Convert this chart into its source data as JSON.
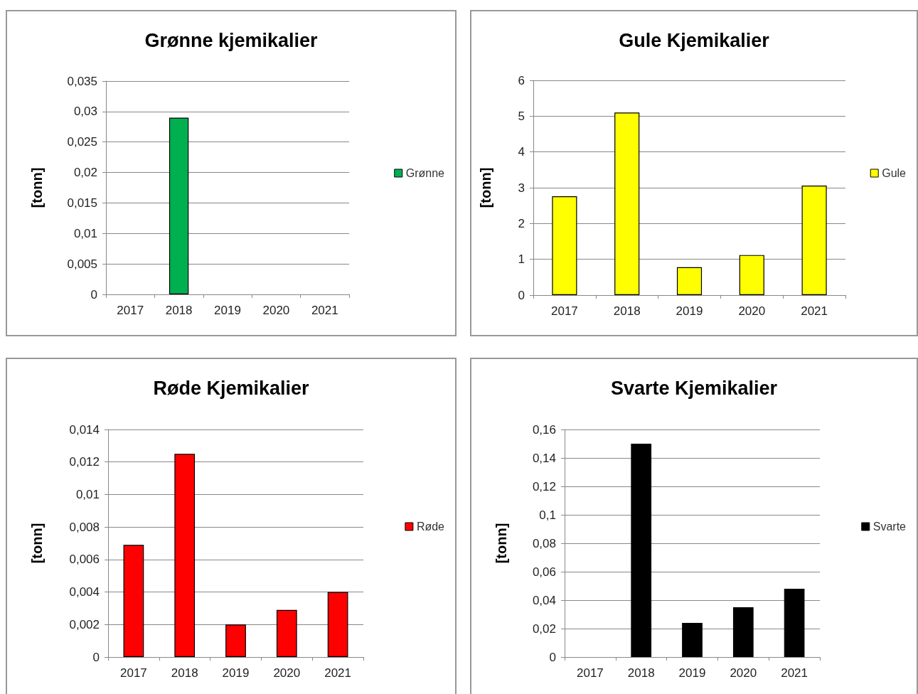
{
  "chart_data": [
    {
      "type": "bar",
      "title": "Grønne kjemikalier",
      "ylabel": "[tonn]",
      "categories": [
        "2017",
        "2018",
        "2019",
        "2020",
        "2021"
      ],
      "series": [
        {
          "name": "Grønne",
          "color": "#00b050",
          "values": [
            0,
            0.029,
            0,
            0,
            0
          ]
        }
      ],
      "ylim": [
        0,
        0.035
      ],
      "yticks": [
        0,
        {
          "value": 0.005,
          "label": "0,005"
        },
        {
          "value": 0.01,
          "label": "0,01"
        },
        {
          "value": 0.015,
          "label": "0,015"
        },
        {
          "value": 0.02,
          "label": "0,02"
        },
        {
          "value": 0.025,
          "label": "0,025"
        },
        {
          "value": 0.03,
          "label": "0,03"
        },
        {
          "value": 0.035,
          "label": "0,035"
        }
      ],
      "grid": "y",
      "legend": "right"
    },
    {
      "type": "bar",
      "title": "Gule Kjemikalier",
      "ylabel": "[tonn]",
      "categories": [
        "2017",
        "2018",
        "2019",
        "2020",
        "2021"
      ],
      "series": [
        {
          "name": "Gule",
          "color": "#ffff00",
          "values": [
            2.76,
            5.1,
            0.78,
            1.12,
            3.06
          ]
        }
      ],
      "ylim": [
        0,
        6
      ],
      "yticks": [
        0,
        1,
        2,
        3,
        4,
        5,
        6
      ],
      "grid": "y",
      "legend": "right"
    },
    {
      "type": "bar",
      "title": "Røde Kjemikalier",
      "ylabel": "[tonn]",
      "categories": [
        "2017",
        "2018",
        "2019",
        "2020",
        "2021"
      ],
      "series": [
        {
          "name": "Røde",
          "color": "#ff0000",
          "values": [
            0.0069,
            0.0125,
            0.002,
            0.0029,
            0.004
          ]
        }
      ],
      "ylim": [
        0,
        0.014
      ],
      "yticks": [
        0,
        {
          "value": 0.002,
          "label": "0,002"
        },
        {
          "value": 0.004,
          "label": "0,004"
        },
        {
          "value": 0.006,
          "label": "0,006"
        },
        {
          "value": 0.008,
          "label": "0,008"
        },
        {
          "value": 0.01,
          "label": "0,01"
        },
        {
          "value": 0.012,
          "label": "0,012"
        },
        {
          "value": 0.014,
          "label": "0,014"
        }
      ],
      "grid": "y",
      "legend": "right"
    },
    {
      "type": "bar",
      "title": "Svarte Kjemikalier",
      "ylabel": "[tonn]",
      "categories": [
        "2017",
        "2018",
        "2019",
        "2020",
        "2021"
      ],
      "series": [
        {
          "name": "Svarte",
          "color": "#000000",
          "values": [
            0,
            0.15,
            0.024,
            0.035,
            0.048
          ]
        }
      ],
      "ylim": [
        0,
        0.16
      ],
      "yticks": [
        0,
        {
          "value": 0.02,
          "label": "0,02"
        },
        {
          "value": 0.04,
          "label": "0,04"
        },
        {
          "value": 0.06,
          "label": "0,06"
        },
        {
          "value": 0.08,
          "label": "0,08"
        },
        {
          "value": 0.1,
          "label": "0,1"
        },
        {
          "value": 0.12,
          "label": "0,12"
        },
        {
          "value": 0.14,
          "label": "0,14"
        },
        {
          "value": 0.16,
          "label": "0,16"
        }
      ],
      "grid": "y",
      "legend": "right"
    }
  ]
}
